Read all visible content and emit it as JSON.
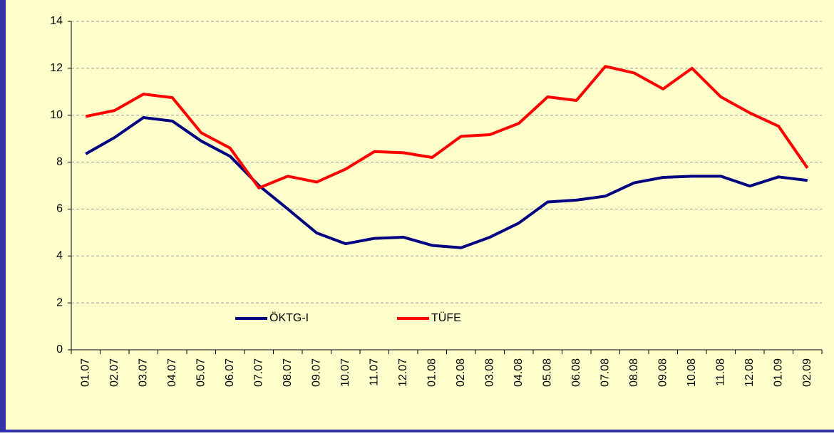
{
  "chart_data": {
    "type": "line",
    "categories": [
      "01.07",
      "02.07",
      "03.07",
      "04.07",
      "05.07",
      "06.07",
      "07.07",
      "08.07",
      "09.07",
      "10.07",
      "11.07",
      "12.07",
      "01.08",
      "02.08",
      "03.08",
      "04.08",
      "05.08",
      "06.08",
      "07.08",
      "08.08",
      "09.08",
      "10.08",
      "11.08",
      "12.08",
      "01.09",
      "02.09"
    ],
    "series": [
      {
        "name": "ÖKTG-I",
        "color": "#000080",
        "values": [
          8.35,
          9.05,
          9.9,
          9.75,
          8.9,
          8.25,
          7.0,
          6.0,
          4.98,
          4.52,
          4.75,
          4.8,
          4.45,
          4.35,
          4.8,
          5.4,
          6.3,
          6.38,
          6.55,
          7.12,
          7.35,
          7.4,
          7.4,
          6.98,
          7.37,
          7.22
        ]
      },
      {
        "name": "TÜFE",
        "color": "#ff0000",
        "values": [
          9.95,
          10.2,
          10.9,
          10.75,
          9.25,
          8.6,
          6.9,
          7.4,
          7.15,
          7.7,
          8.45,
          8.4,
          8.2,
          9.1,
          9.17,
          9.65,
          10.78,
          10.63,
          12.08,
          11.8,
          11.12,
          12.0,
          10.78,
          10.1,
          9.53,
          7.75
        ]
      }
    ],
    "ylim": [
      0,
      14
    ],
    "yticks": [
      0,
      2,
      4,
      6,
      8,
      10,
      12,
      14
    ],
    "grid": true
  }
}
